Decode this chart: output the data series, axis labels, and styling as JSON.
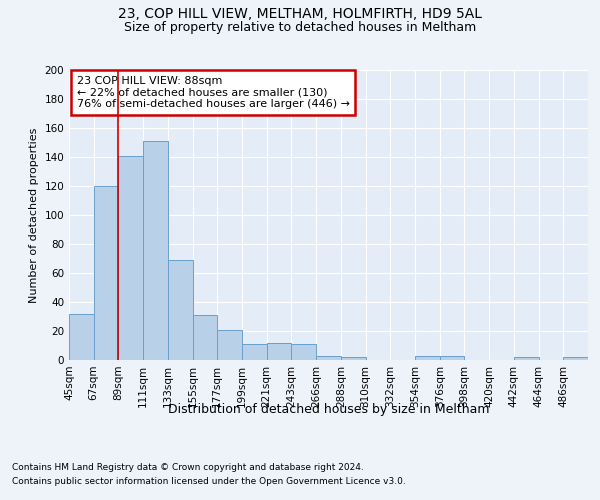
{
  "title1": "23, COP HILL VIEW, MELTHAM, HOLMFIRTH, HD9 5AL",
  "title2": "Size of property relative to detached houses in Meltham",
  "xlabel": "Distribution of detached houses by size in Meltham",
  "ylabel": "Number of detached properties",
  "footer1": "Contains HM Land Registry data © Crown copyright and database right 2024.",
  "footer2": "Contains public sector information licensed under the Open Government Licence v3.0.",
  "annotation_line1": "23 COP HILL VIEW: 88sqm",
  "annotation_line2": "← 22% of detached houses are smaller (130)",
  "annotation_line3": "76% of semi-detached houses are larger (446) →",
  "bar_values": [
    32,
    120,
    141,
    151,
    69,
    31,
    21,
    11,
    12,
    11,
    3,
    2,
    0,
    0,
    3,
    3,
    0,
    0,
    2,
    0,
    2
  ],
  "tick_labels": [
    "45sqm",
    "67sqm",
    "89sqm",
    "111sqm",
    "133sqm",
    "155sqm",
    "177sqm",
    "199sqm",
    "221sqm",
    "243sqm",
    "266sqm",
    "288sqm",
    "310sqm",
    "332sqm",
    "354sqm",
    "376sqm",
    "398sqm",
    "420sqm",
    "442sqm",
    "464sqm",
    "486sqm"
  ],
  "ylim": [
    0,
    200
  ],
  "yticks": [
    0,
    20,
    40,
    60,
    80,
    100,
    120,
    140,
    160,
    180,
    200
  ],
  "bar_color": "#b8d0e8",
  "bar_edge_color": "#6aa0cc",
  "marker_line_color": "#cc0000",
  "bg_color": "#eef3fa",
  "plot_bg": "#e4edf7",
  "title1_fontsize": 10,
  "title2_fontsize": 9,
  "annotation_box_color": "#cc0000",
  "grid_color": "#ffffff",
  "xlabel_fontsize": 9,
  "ylabel_fontsize": 8,
  "tick_fontsize": 7.5,
  "footer_fontsize": 6.5
}
